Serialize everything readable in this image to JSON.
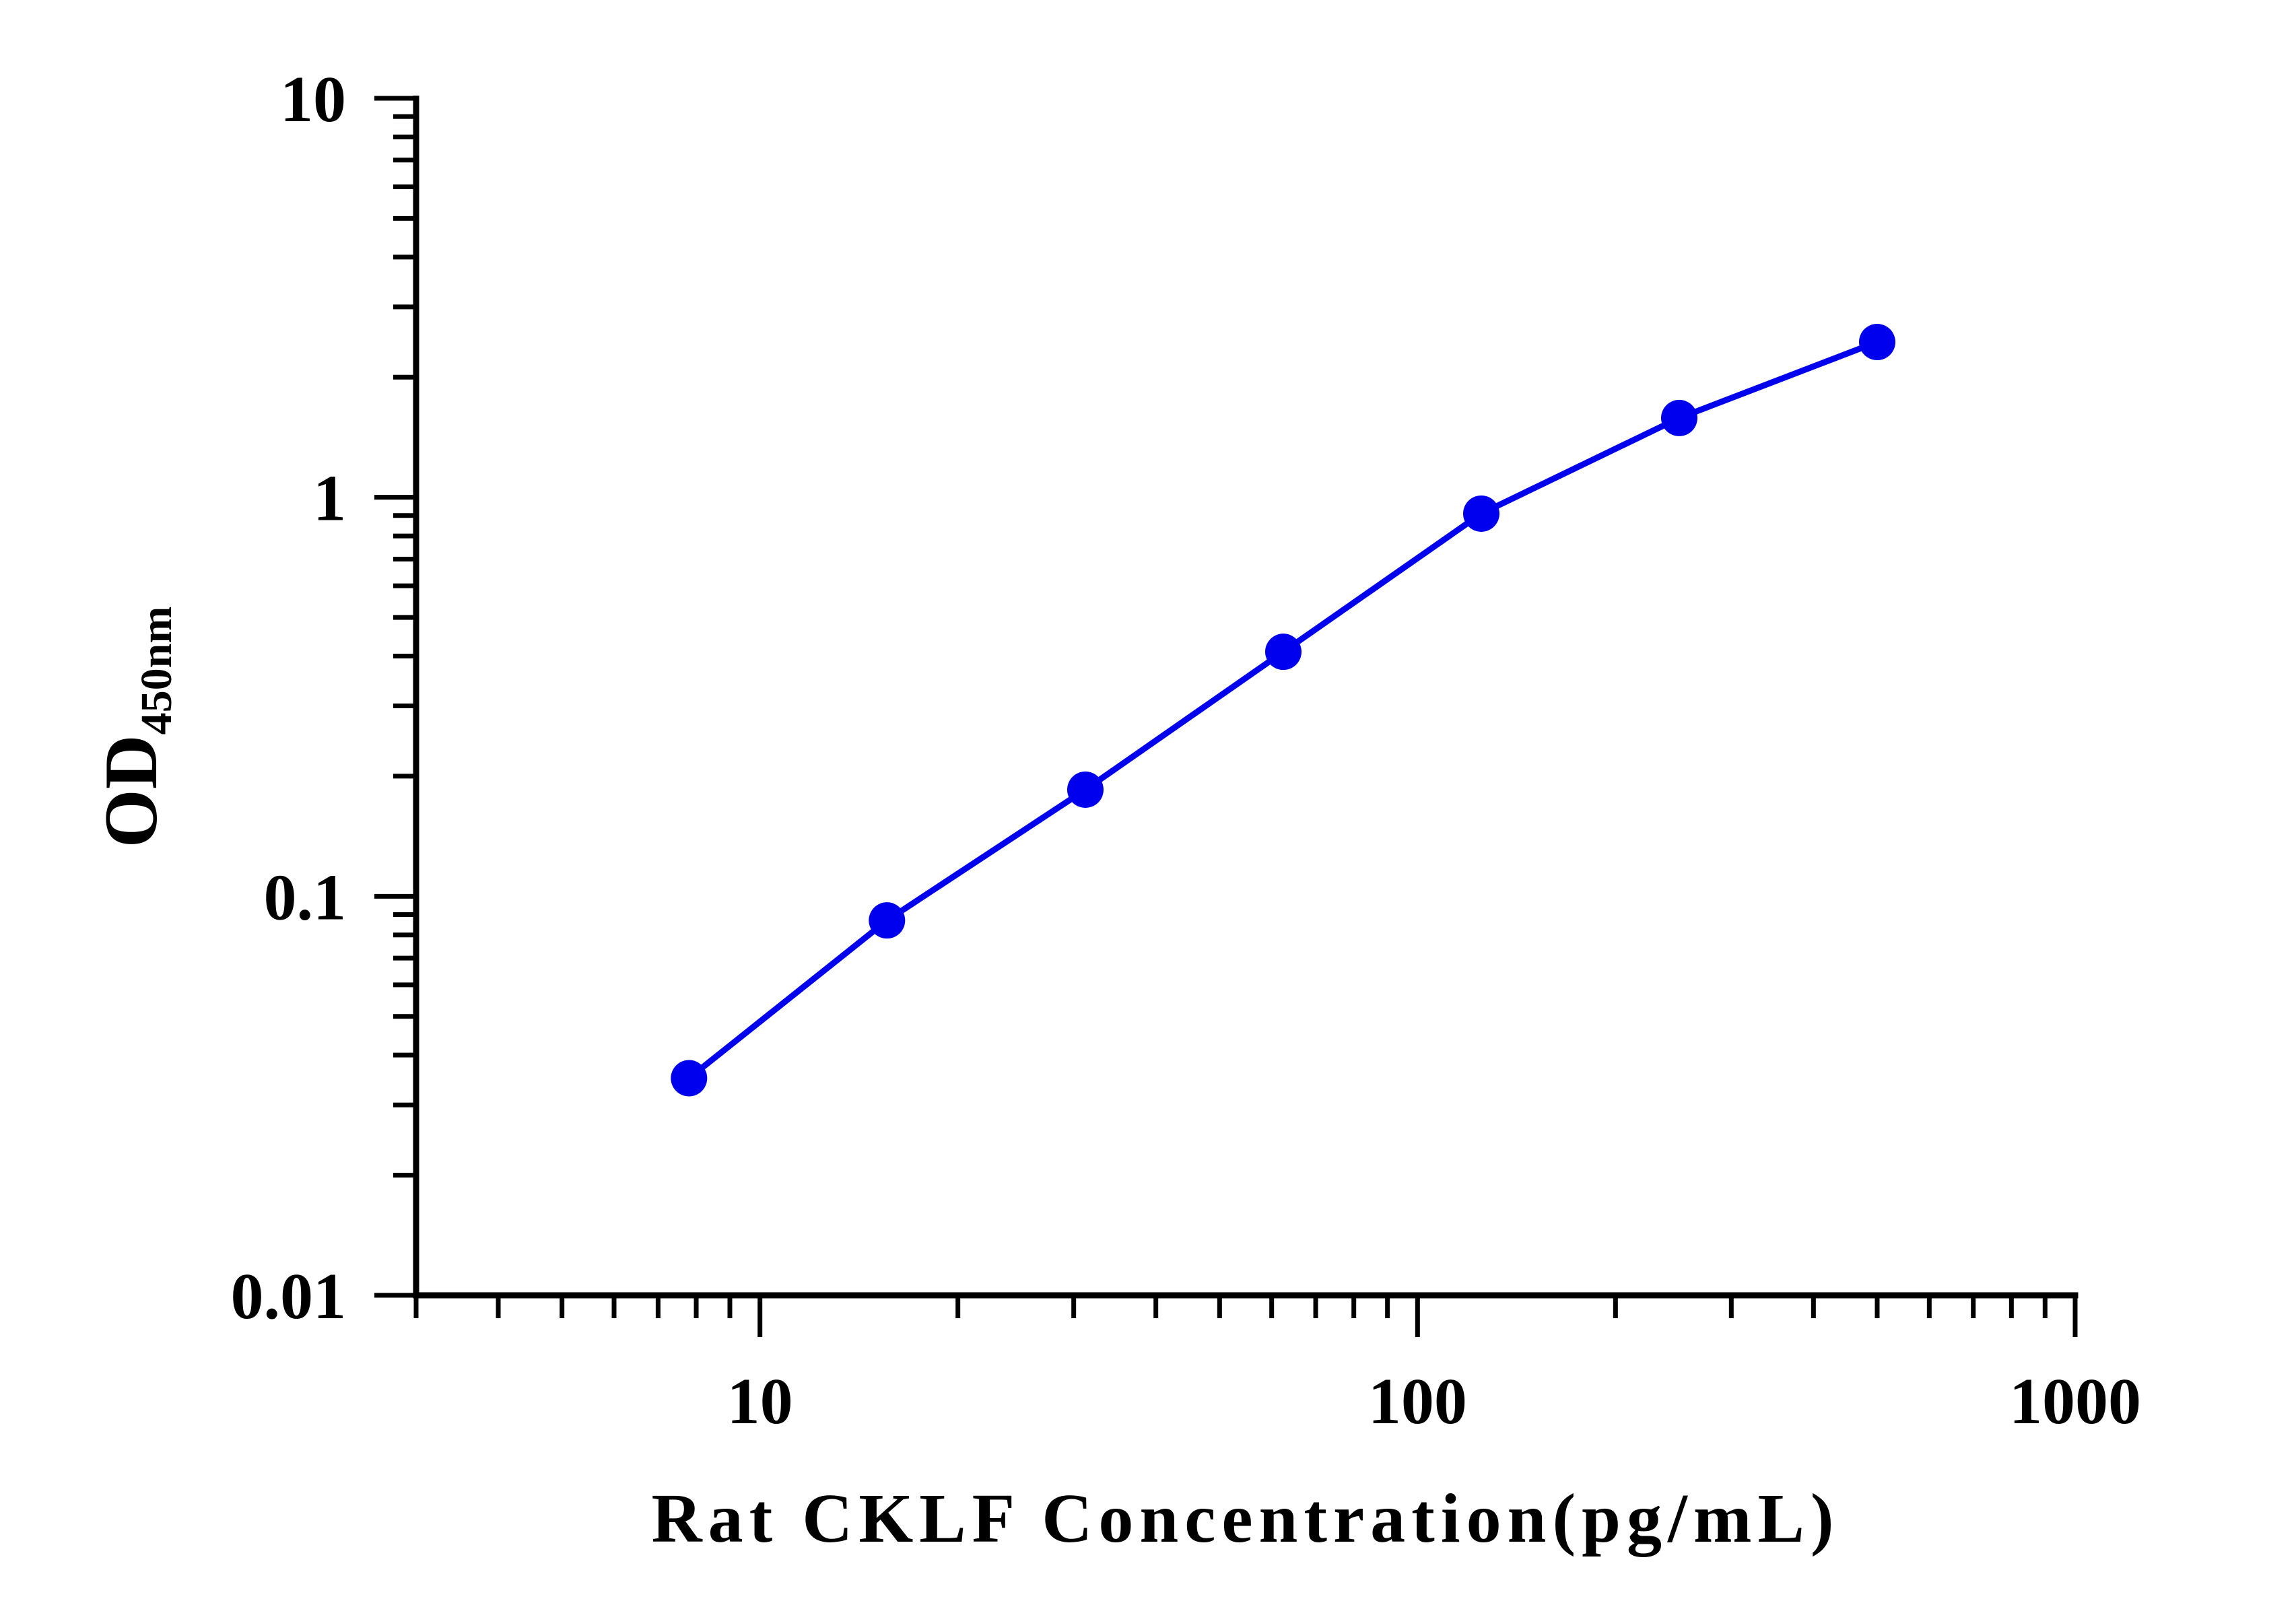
{
  "chart_data": {
    "type": "line",
    "xlabel": "Rat CKLF Concentration(pg/mL)",
    "ylabel": {
      "main": "OD",
      "subscript": "450nm"
    },
    "x_scale": "log",
    "y_scale": "log",
    "xlim": [
      3,
      1000
    ],
    "ylim": [
      0.01,
      10
    ],
    "x_tick_labels": [
      {
        "value": 10,
        "label": "10"
      },
      {
        "value": 100,
        "label": "100"
      },
      {
        "value": 1000,
        "label": "1000"
      }
    ],
    "y_tick_labels": [
      {
        "value": 10,
        "label": "10"
      },
      {
        "value": 1,
        "label": "1"
      },
      {
        "value": 0.1,
        "label": "0.1"
      },
      {
        "value": 0.01,
        "label": "0.01"
      }
    ],
    "grid": false,
    "series": [
      {
        "color": "#0000ee",
        "points": [
          {
            "x": 7.8,
            "y": 0.035
          },
          {
            "x": 15.6,
            "y": 0.087
          },
          {
            "x": 31.25,
            "y": 0.185
          },
          {
            "x": 62.5,
            "y": 0.41
          },
          {
            "x": 125,
            "y": 0.91
          },
          {
            "x": 250,
            "y": 1.58
          },
          {
            "x": 500,
            "y": 2.45
          }
        ]
      }
    ]
  }
}
